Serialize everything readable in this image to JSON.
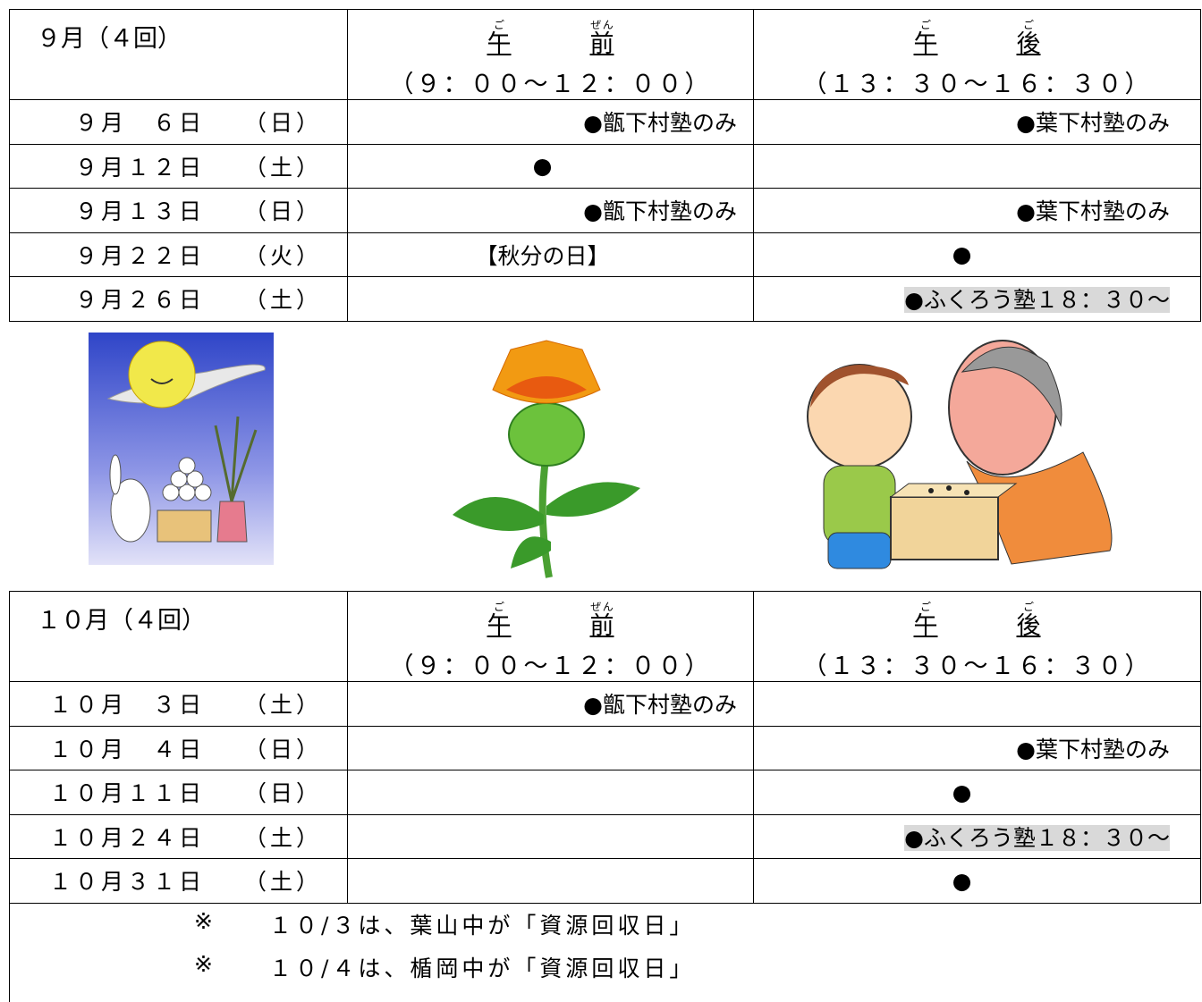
{
  "sections": [
    {
      "month": "９月（４回）",
      "am": {
        "chars": [
          "午",
          "前"
        ],
        "ruby": [
          "ご",
          "ぜん"
        ],
        "time": "（９：００～１２：００）"
      },
      "pm": {
        "chars": [
          "午",
          "後"
        ],
        "ruby": [
          "ご",
          "ご"
        ],
        "time": "（１３：３０～１６：３０）"
      },
      "rows": [
        {
          "date": "９月　６日",
          "day": "（日）",
          "am": "●甑下村塾のみ",
          "pm": "●葉下村塾のみ"
        },
        {
          "date": "９月１２日",
          "day": "（土）",
          "am": "●",
          "pm": null
        },
        {
          "date": "９月１３日",
          "day": "（日）",
          "am": "●甑下村塾のみ",
          "pm": "●葉下村塾のみ"
        },
        {
          "date": "９月２２日",
          "day": "（火）",
          "am": "【秋分の日】",
          "pm": "●"
        },
        {
          "date": "９月２６日",
          "day": "（土）",
          "am": null,
          "pm": "●ふくろう塾１８：３０～",
          "highlight": true
        }
      ]
    },
    {
      "month": "１０月（４回）",
      "am": {
        "chars": [
          "午",
          "前"
        ],
        "ruby": [
          "ご",
          "ぜん"
        ],
        "time": "（９：００～１２：００）"
      },
      "pm": {
        "chars": [
          "午",
          "後"
        ],
        "ruby": [
          "ご",
          "ご"
        ],
        "time": "（１３：３０～１６：３０）"
      },
      "rows": [
        {
          "date": "１０月　３日",
          "day": "（土）",
          "am": "●甑下村塾のみ",
          "pm": null
        },
        {
          "date": "１０月　４日",
          "day": "（日）",
          "am": null,
          "pm": "●葉下村塾のみ"
        },
        {
          "date": "１０月１１日",
          "day": "（日）",
          "am": null,
          "pm": "●"
        },
        {
          "date": "１０月２４日",
          "day": "（土）",
          "am": null,
          "pm": "●ふくろう塾１８：３０～",
          "highlight": true
        },
        {
          "date": "１０月３１日",
          "day": "（土）",
          "am": null,
          "pm": "●"
        }
      ]
    }
  ],
  "notes": [
    {
      "mark": "※",
      "text": "１０/３は、葉山中が「資源回収日」"
    },
    {
      "mark": "※",
      "text": "１０/４は、楯岡中が「資源回収日」"
    }
  ]
}
